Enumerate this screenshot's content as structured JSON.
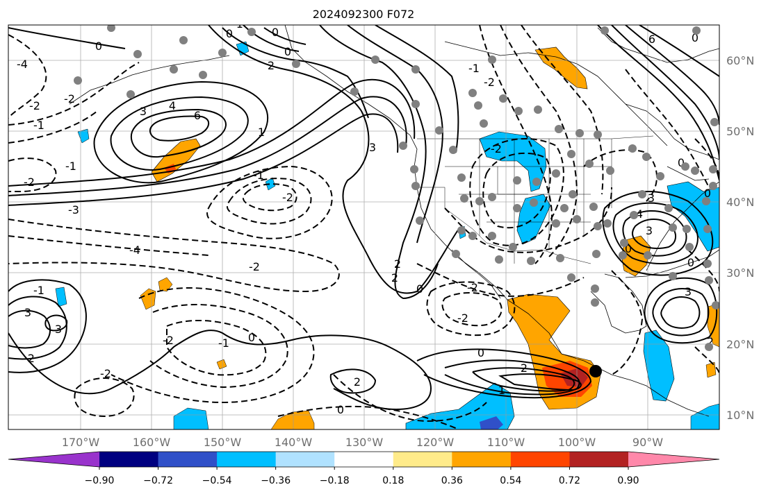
{
  "title": "2024092300 F072",
  "lon_labels": [
    "170°W",
    "160°W",
    "150°W",
    "140°W",
    "130°W",
    "120°W",
    "110°W",
    "100°W",
    "90°W"
  ],
  "lat_labels": [
    "60°N",
    "50°N",
    "40°N",
    "30°N",
    "20°N",
    "10°N"
  ],
  "colorbar": {
    "ticks": [
      "−0.90",
      "−0.72",
      "−0.54",
      "−0.36",
      "−0.18",
      "0.18",
      "0.36",
      "0.54",
      "0.72",
      "0.90"
    ],
    "colors": [
      "#9933cc",
      "#000080",
      "#3050c8",
      "#00bfff",
      "#b0e2ff",
      "#ffffff",
      "#ffeb8a",
      "#ffa500",
      "#ff4500",
      "#b22222",
      "#ff88aa"
    ]
  },
  "contour_labels": [
    "-4",
    "-2",
    "-2",
    "-1",
    "0",
    "-1",
    "-2",
    "-3",
    "-4",
    "-2",
    "-1",
    "-2",
    "-2",
    "-1",
    "0",
    "-2",
    "-2",
    "-2",
    "-1",
    "-2",
    "3",
    "4",
    "6",
    "1",
    "2",
    "0",
    "3",
    "2",
    "3",
    "3",
    "2",
    "0",
    "2",
    "0",
    "2",
    "1",
    "0",
    "-1",
    "-2",
    "-2",
    "0",
    "-1",
    "0",
    "6",
    "3",
    "4",
    "3",
    "0",
    "3",
    "0",
    "2",
    "0",
    "0",
    "0"
  ],
  "marker": "storm-center-dot"
}
